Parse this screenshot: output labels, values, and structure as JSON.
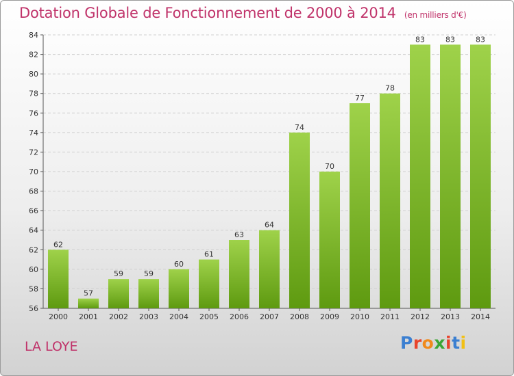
{
  "header": {
    "title": "Dotation Globale de Fonctionnement de 2000 à 2014",
    "unit": "(en milliers d'€)"
  },
  "footer": {
    "commune": "LA LOYE",
    "logo": "Proxiti",
    "logo_colors": [
      "#3b7fd1",
      "#e8442c",
      "#f08a1c",
      "#3aa635",
      "#e8442c",
      "#3b7fd1",
      "#f2c014"
    ]
  },
  "chart_data": {
    "type": "bar",
    "title": "Dotation Globale de Fonctionnement de 2000 à 2014",
    "subtitle": "(en milliers d'€)",
    "categories": [
      "2000",
      "2001",
      "2002",
      "2003",
      "2004",
      "2005",
      "2006",
      "2007",
      "2008",
      "2009",
      "2010",
      "2011",
      "2012",
      "2013",
      "2014"
    ],
    "values": [
      62,
      57,
      59,
      59,
      60,
      61,
      63,
      64,
      74,
      70,
      77,
      78,
      83,
      83,
      83
    ],
    "ylim": [
      56,
      84
    ],
    "yticks": [
      56,
      58,
      60,
      62,
      64,
      66,
      68,
      70,
      72,
      74,
      76,
      78,
      80,
      82,
      84
    ],
    "grid": true,
    "bar_color_top": "#9fd24a",
    "bar_color_bottom": "#5e9a10"
  }
}
